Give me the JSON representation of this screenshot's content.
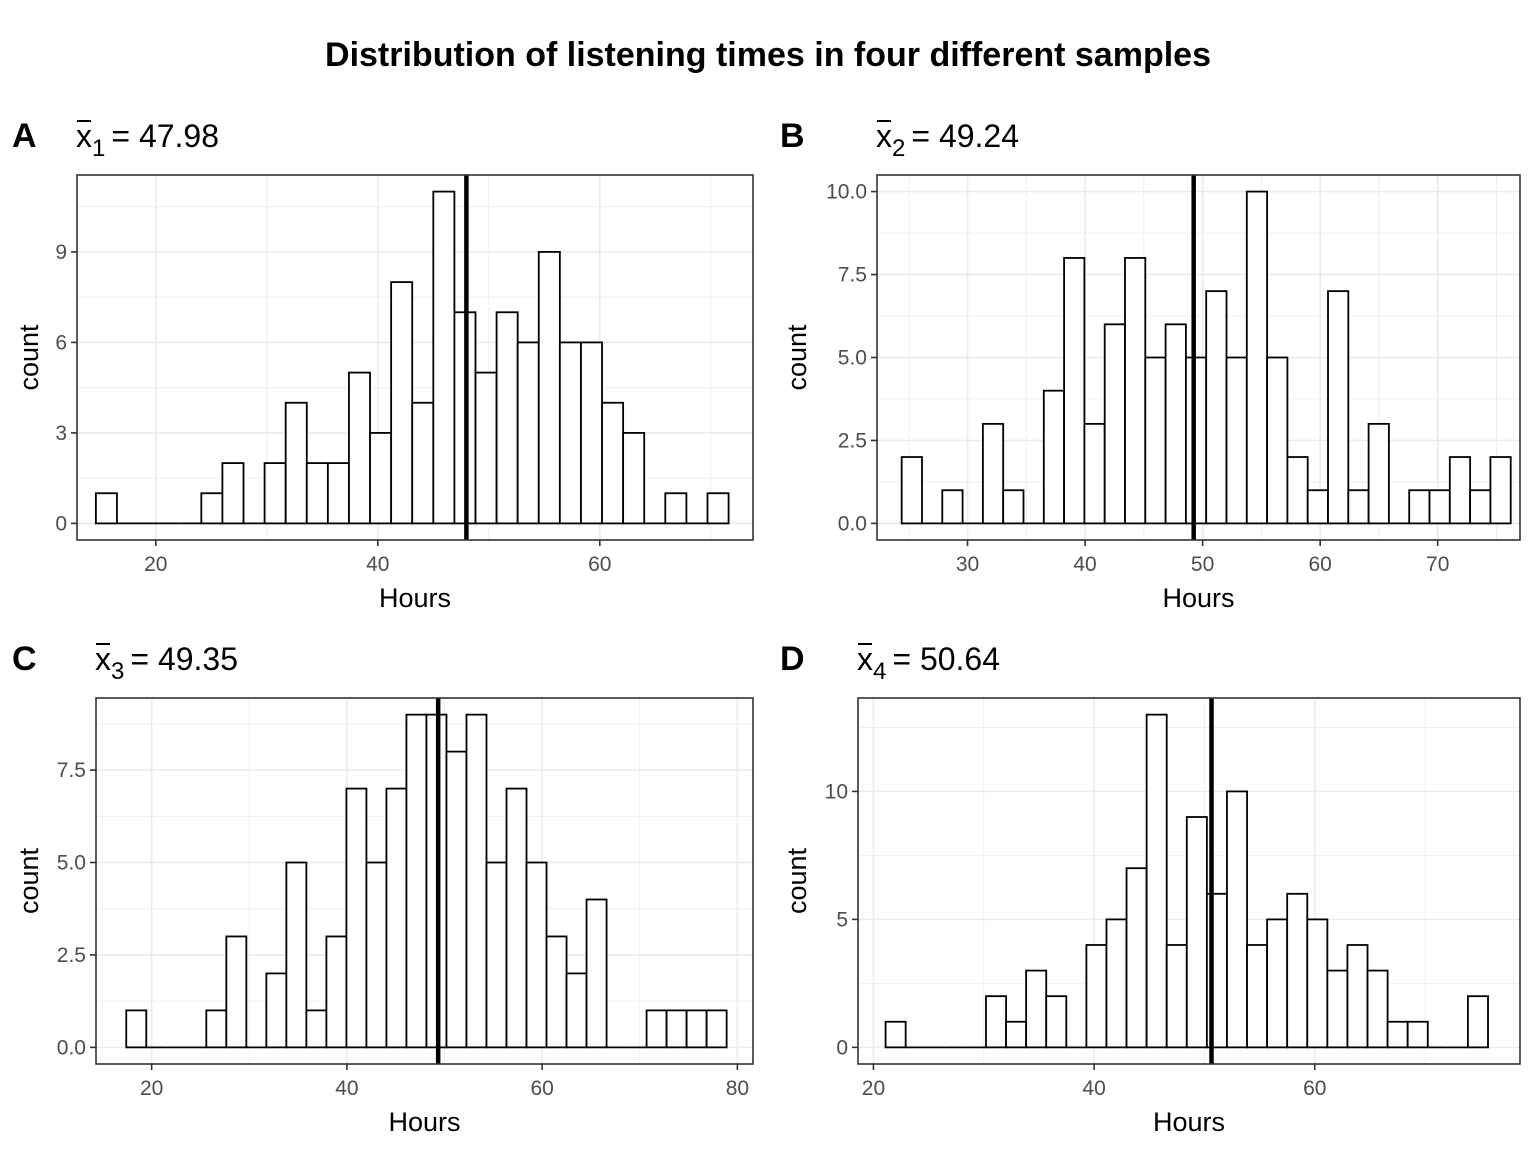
{
  "figure": {
    "title": "Distribution of listening times in four different samples"
  },
  "chart_data": [
    {
      "type": "bar",
      "panel_tag": "A",
      "subtitle_symbol": "x",
      "subtitle_subscript": "1",
      "subtitle_value": "= 47.98",
      "mean": 47.98,
      "xlabel": "Hours",
      "ylabel": "count",
      "xlim": [
        12.9,
        73.8
      ],
      "ylim": [
        -0.55,
        11.55
      ],
      "xticks": [
        20,
        40,
        60
      ],
      "xtick_labels": [
        "20",
        "40",
        "60"
      ],
      "yticks": [
        0,
        3,
        6,
        9
      ],
      "ytick_labels": [
        "0",
        "3",
        "6",
        "9"
      ],
      "bin_start": 14.6,
      "bin_width": 1.9,
      "counts": [
        1,
        0,
        0,
        0,
        0,
        1,
        2,
        0,
        2,
        4,
        2,
        2,
        5,
        3,
        8,
        4,
        11,
        7,
        5,
        7,
        6,
        9,
        6,
        6,
        4,
        3,
        0,
        1,
        0,
        1
      ],
      "grid": true
    },
    {
      "type": "bar",
      "panel_tag": "B",
      "subtitle_symbol": "x",
      "subtitle_subscript": "2",
      "subtitle_value": "= 49.24",
      "mean": 49.24,
      "xlabel": "Hours",
      "ylabel": "count",
      "xlim": [
        22.3,
        77.0
      ],
      "ylim": [
        -0.5,
        10.5
      ],
      "xticks": [
        30,
        40,
        50,
        60,
        70
      ],
      "xtick_labels": [
        "30",
        "40",
        "50",
        "60",
        "70"
      ],
      "yticks": [
        0,
        2.5,
        5,
        7.5,
        10
      ],
      "ytick_labels": [
        "0.0",
        "2.5",
        "5.0",
        "7.5",
        "10.0"
      ],
      "bin_start": 24.4,
      "bin_width": 1.727,
      "counts": [
        2,
        0,
        1,
        0,
        3,
        1,
        0,
        4,
        8,
        3,
        6,
        8,
        5,
        6,
        5,
        7,
        5,
        10,
        5,
        2,
        1,
        7,
        1,
        3,
        0,
        1,
        1,
        2,
        1,
        2
      ],
      "grid": true
    },
    {
      "type": "bar",
      "panel_tag": "C",
      "subtitle_symbol": "x",
      "subtitle_subscript": "3",
      "subtitle_value": "= 49.35",
      "mean": 49.35,
      "xlabel": "Hours",
      "ylabel": "count",
      "xlim": [
        14.3,
        81.6
      ],
      "ylim": [
        -0.45,
        9.45
      ],
      "xticks": [
        20,
        40,
        60,
        80
      ],
      "xtick_labels": [
        "20",
        "40",
        "60",
        "80"
      ],
      "yticks": [
        0,
        2.5,
        5,
        7.5
      ],
      "ytick_labels": [
        "0.0",
        "2.5",
        "5.0",
        "7.5"
      ],
      "bin_start": 17.4,
      "bin_width": 2.05,
      "counts": [
        1,
        0,
        0,
        0,
        1,
        3,
        0,
        2,
        5,
        1,
        3,
        7,
        5,
        7,
        9,
        9,
        8,
        9,
        5,
        7,
        5,
        3,
        2,
        4,
        0,
        0,
        1,
        1,
        1,
        1
      ],
      "grid": true
    },
    {
      "type": "bar",
      "panel_tag": "D",
      "subtitle_symbol": "x",
      "subtitle_subscript": "4",
      "subtitle_value": "= 50.64",
      "mean": 50.64,
      "xlabel": "Hours",
      "ylabel": "count",
      "xlim": [
        18.6,
        78.6
      ],
      "ylim": [
        -0.65,
        13.65
      ],
      "xticks": [
        20,
        40,
        60
      ],
      "xtick_labels": [
        "20",
        "40",
        "60"
      ],
      "yticks": [
        0,
        5,
        10
      ],
      "ytick_labels": [
        "0",
        "5",
        "10"
      ],
      "bin_start": 21.1,
      "bin_width": 1.82,
      "counts": [
        1,
        0,
        0,
        0,
        0,
        2,
        1,
        3,
        2,
        0,
        4,
        5,
        7,
        13,
        4,
        9,
        6,
        10,
        4,
        5,
        6,
        5,
        3,
        4,
        3,
        1,
        1,
        0,
        0,
        2
      ],
      "grid": true
    }
  ]
}
